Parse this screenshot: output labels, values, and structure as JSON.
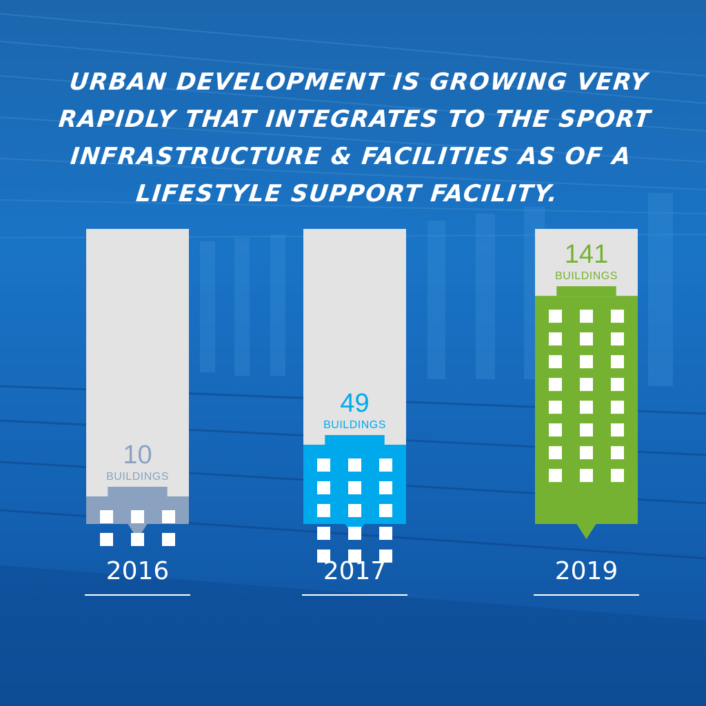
{
  "headline": {
    "lines": [
      "URBAN DEVELOPMENT IS GROWING VERY",
      "RAPIDLY THAT INTEGRATES TO THE SPORT",
      "INFRASTRUCTURE &  FACILITIES AS OF A",
      "LIFESTYLE SUPPORT FACILITY."
    ]
  },
  "colors": {
    "bar_background": "#e3e3e3",
    "bar_2016": "#8aa2c0",
    "bar_2017": "#00a9ec",
    "bar_2019": "#76b232",
    "window": "#ffffff",
    "year_label": "#ffffff"
  },
  "chart_data": {
    "type": "bar",
    "categories": [
      "2016",
      "2017",
      "2019"
    ],
    "values": [
      10,
      49,
      141
    ],
    "unit_label": "BUILDINGS",
    "value_labels": [
      "10",
      "49",
      "141"
    ],
    "window_grid": [
      [
        3,
        2
      ],
      [
        3,
        5
      ],
      [
        3,
        8
      ]
    ],
    "ylim": [
      0,
      180
    ],
    "grid": false,
    "legend": "none"
  }
}
